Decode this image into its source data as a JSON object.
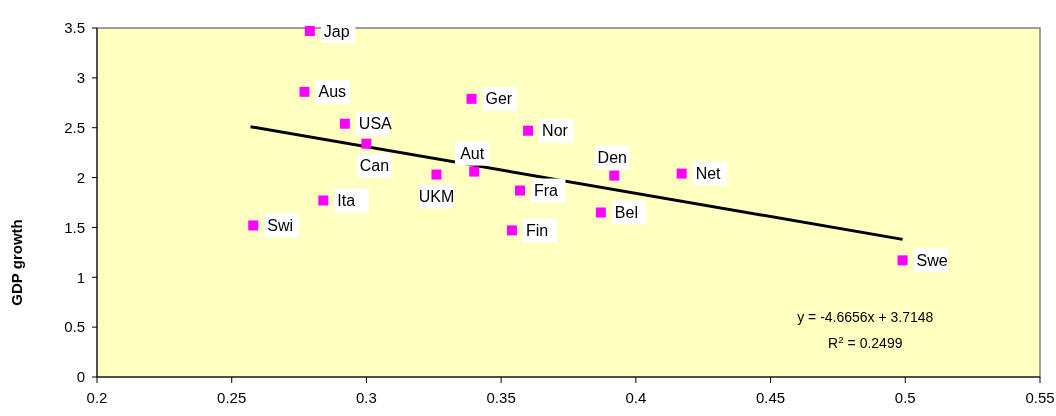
{
  "chart_data": {
    "type": "scatter",
    "ylabel": "GDP growth",
    "xlim": [
      0.2,
      0.55
    ],
    "xticks": [
      0.2,
      0.25,
      0.3,
      0.35,
      0.4,
      0.45,
      0.5,
      0.55
    ],
    "ylim": [
      0,
      3.5
    ],
    "yticks": [
      0,
      0.5,
      1,
      1.5,
      2,
      2.5,
      3,
      3.5
    ],
    "grid": false,
    "series": [
      {
        "type": "scatter",
        "color": "#ff00ff",
        "marker": "square",
        "x": [
          0.279,
          0.277,
          0.292,
          0.3,
          0.326,
          0.34,
          0.284,
          0.258,
          0.339,
          0.36,
          0.357,
          0.354,
          0.392,
          0.387,
          0.417,
          0.499
        ],
        "values": [
          3.47,
          2.86,
          2.54,
          2.34,
          2.03,
          2.06,
          1.77,
          1.52,
          2.79,
          2.47,
          1.87,
          1.47,
          2.02,
          1.65,
          2.04,
          1.17
        ]
      },
      {
        "type": "line",
        "color": "#000000",
        "x": [
          0.257,
          0.499
        ],
        "values": [
          2.51,
          1.38
        ],
        "marker": "none"
      }
    ],
    "annotations": [
      {
        "text": "Jap",
        "x": 0.279,
        "y": 3.47
      },
      {
        "text": "Aus",
        "x": 0.277,
        "y": 2.86
      },
      {
        "text": "USA",
        "x": 0.292,
        "y": 2.54
      },
      {
        "text": "Can",
        "x": 0.3,
        "y": 2.34
      },
      {
        "text": "UKM",
        "x": 0.326,
        "y": 2.03
      },
      {
        "text": "Aut",
        "x": 0.34,
        "y": 2.06
      },
      {
        "text": "Ita",
        "x": 0.284,
        "y": 1.77
      },
      {
        "text": "Swi",
        "x": 0.258,
        "y": 1.52
      },
      {
        "text": "Ger",
        "x": 0.339,
        "y": 2.79
      },
      {
        "text": "Nor",
        "x": 0.36,
        "y": 2.47
      },
      {
        "text": "Fra",
        "x": 0.357,
        "y": 1.87
      },
      {
        "text": "Fin",
        "x": 0.354,
        "y": 1.47
      },
      {
        "text": "Den",
        "x": 0.392,
        "y": 2.02
      },
      {
        "text": "Bel",
        "x": 0.387,
        "y": 1.65
      },
      {
        "text": "Net",
        "x": 0.417,
        "y": 2.04
      },
      {
        "text": "Swe",
        "x": 0.499,
        "y": 1.17
      },
      "y = -4.6656x + 3.7148",
      "R$^{2}$ = 0.2499"
    ]
  }
}
